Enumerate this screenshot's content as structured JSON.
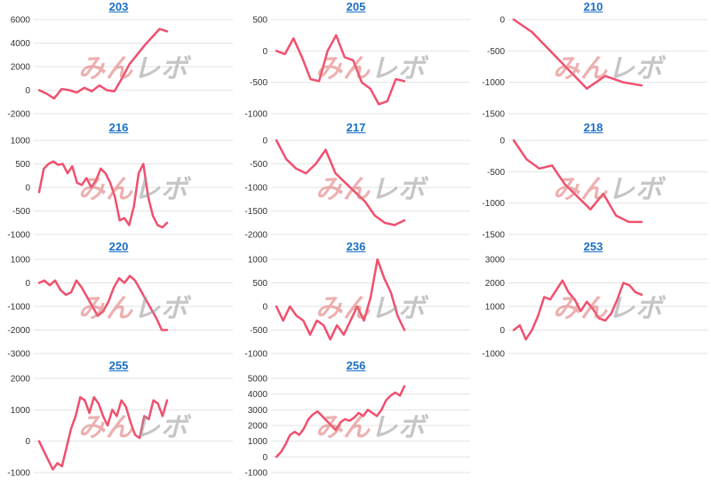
{
  "watermark": {
    "part1": "みん",
    "part2": "レボ",
    "color1": "#e07070",
    "color2": "#999999"
  },
  "line_color": "#f0506e",
  "link_color": "#1a6fc4",
  "chart_data": [
    {
      "type": "line",
      "title": "203",
      "yticks": [
        6000,
        4000,
        2000,
        0,
        -2000
      ],
      "ylim": [
        -2000,
        6000
      ],
      "values": [
        0,
        -300,
        -700,
        100,
        0,
        -200,
        200,
        -100,
        400,
        0,
        -100,
        1000,
        2200,
        3000,
        3800,
        4500,
        5200,
        5000
      ]
    },
    {
      "type": "line",
      "title": "205",
      "yticks": [
        500,
        0,
        -500,
        -1000
      ],
      "ylim": [
        -1000,
        500
      ],
      "values": [
        0,
        -50,
        200,
        -100,
        -450,
        -480,
        0,
        250,
        -100,
        -150,
        -500,
        -600,
        -850,
        -800,
        -450,
        -480
      ]
    },
    {
      "type": "line",
      "title": "210",
      "yticks": [
        0,
        -500,
        -1000,
        -1500
      ],
      "ylim": [
        -1500,
        0
      ],
      "values": [
        0,
        -200,
        -500,
        -800,
        -1100,
        -900,
        -1000,
        -1050
      ]
    },
    {
      "type": "line",
      "title": "216",
      "yticks": [
        1000,
        500,
        0,
        -500,
        -1000
      ],
      "ylim": [
        -1000,
        1000
      ],
      "values": [
        -100,
        400,
        500,
        550,
        480,
        500,
        300,
        450,
        100,
        50,
        200,
        0,
        150,
        400,
        300,
        100,
        -200,
        -700,
        -650,
        -800,
        -400,
        300,
        500,
        -200,
        -600,
        -800,
        -850,
        -750
      ]
    },
    {
      "type": "line",
      "title": "217",
      "yticks": [
        0,
        -500,
        -1000,
        -1500,
        -2000
      ],
      "ylim": [
        -2000,
        0
      ],
      "values": [
        0,
        -400,
        -600,
        -700,
        -500,
        -200,
        -700,
        -900,
        -1100,
        -1300,
        -1600,
        -1750,
        -1800,
        -1700
      ]
    },
    {
      "type": "line",
      "title": "218",
      "yticks": [
        0,
        -500,
        -1000,
        -1500
      ],
      "ylim": [
        -1500,
        0
      ],
      "values": [
        0,
        -300,
        -450,
        -400,
        -700,
        -900,
        -1100,
        -850,
        -1200,
        -1300,
        -1300
      ]
    },
    {
      "type": "line",
      "title": "220",
      "yticks": [
        1000,
        0,
        -1000,
        -2000,
        -3000
      ],
      "ylim": [
        -3000,
        1000
      ],
      "values": [
        0,
        100,
        -100,
        100,
        -300,
        -500,
        -400,
        100,
        -200,
        -600,
        -1000,
        -1400,
        -1200,
        -800,
        -200,
        200,
        0,
        300,
        100,
        -300,
        -700,
        -1100,
        -1500,
        -2000,
        -2000
      ]
    },
    {
      "type": "line",
      "title": "236",
      "yticks": [
        1000,
        500,
        0,
        -500,
        -1000
      ],
      "ylim": [
        -1000,
        1000
      ],
      "values": [
        0,
        -300,
        0,
        -200,
        -300,
        -600,
        -300,
        -400,
        -700,
        -400,
        -600,
        -300,
        0,
        -300,
        200,
        1000,
        600,
        300,
        -200,
        -500
      ]
    },
    {
      "type": "line",
      "title": "253",
      "yticks": [
        3000,
        2000,
        1000,
        0,
        -1000
      ],
      "ylim": [
        -1000,
        3000
      ],
      "values": [
        0,
        200,
        -400,
        0,
        600,
        1400,
        1300,
        1700,
        2100,
        1600,
        1300,
        800,
        1200,
        900,
        500,
        400,
        700,
        1300,
        2000,
        1900,
        1600,
        1500
      ]
    },
    {
      "type": "line",
      "title": "255",
      "yticks": [
        2000,
        1000,
        0,
        -1000
      ],
      "ylim": [
        -1000,
        2000
      ],
      "values": [
        0,
        -300,
        -600,
        -900,
        -700,
        -800,
        -200,
        400,
        800,
        1400,
        1300,
        900,
        1400,
        1200,
        800,
        500,
        1000,
        800,
        1300,
        1100,
        600,
        200,
        100,
        800,
        700,
        1300,
        1200,
        800,
        1300
      ]
    },
    {
      "type": "line",
      "title": "256",
      "yticks": [
        5000,
        4000,
        3000,
        2000,
        1000,
        0,
        -1000
      ],
      "ylim": [
        -1000,
        5000
      ],
      "values": [
        0,
        300,
        800,
        1400,
        1600,
        1400,
        1800,
        2400,
        2700,
        2900,
        2600,
        2300,
        2000,
        1700,
        2200,
        2400,
        2300,
        2500,
        2800,
        2600,
        3000,
        2800,
        2600,
        3000,
        3600,
        3900,
        4100,
        3900,
        4500
      ]
    }
  ]
}
